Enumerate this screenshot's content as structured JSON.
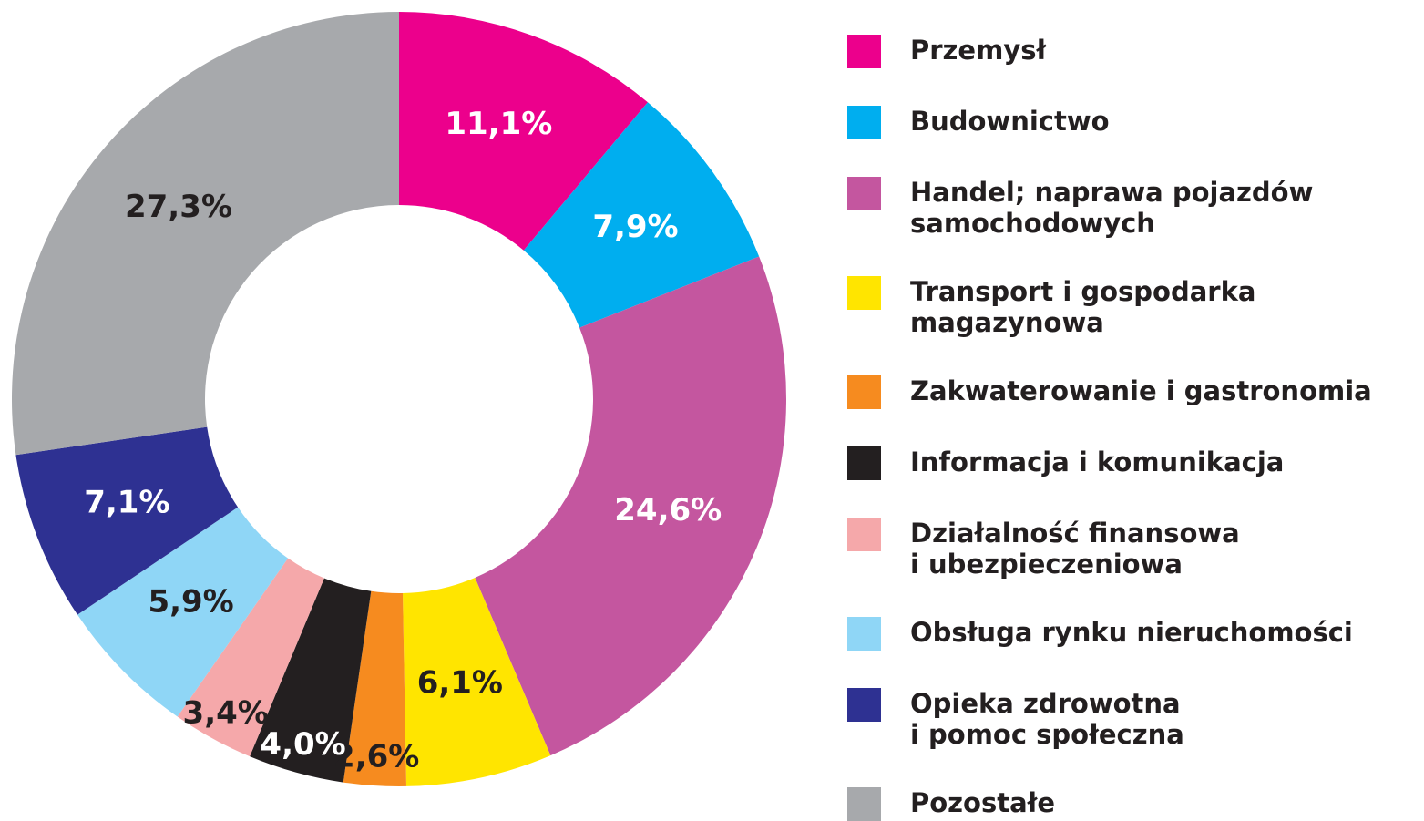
{
  "chart_data": {
    "type": "donut",
    "categories": [
      "Przemysł",
      "Budownictwo",
      "Handel; naprawa pojazdów\nsamochodowych",
      "Transport i gospodarka\nmagazynowa",
      "Zakwaterowanie i gastronomia",
      "Informacja i komunikacja",
      "Działalność finansowa\ni ubezpieczeniowa",
      "Obsługa rynku nieruchomości",
      "Opieka zdrowotna\ni pomoc społeczna",
      "Pozostałe"
    ],
    "values": [
      11.1,
      7.9,
      24.6,
      6.1,
      2.6,
      4.0,
      3.4,
      5.9,
      7.1,
      27.3
    ],
    "value_labels": [
      "11,1%",
      "7,9%",
      "24,6%",
      "6,1%",
      "2,6%",
      "4,0%",
      "3,4%",
      "5,9%",
      "7,1%",
      "27,3%"
    ],
    "colors": [
      "#ec008c",
      "#00aeef",
      "#c4569f",
      "#ffe500",
      "#f68b1f",
      "#231f20",
      "#f5a8aa",
      "#8fd6f6",
      "#2e3192",
      "#a7a9ac"
    ],
    "legend": "right"
  }
}
